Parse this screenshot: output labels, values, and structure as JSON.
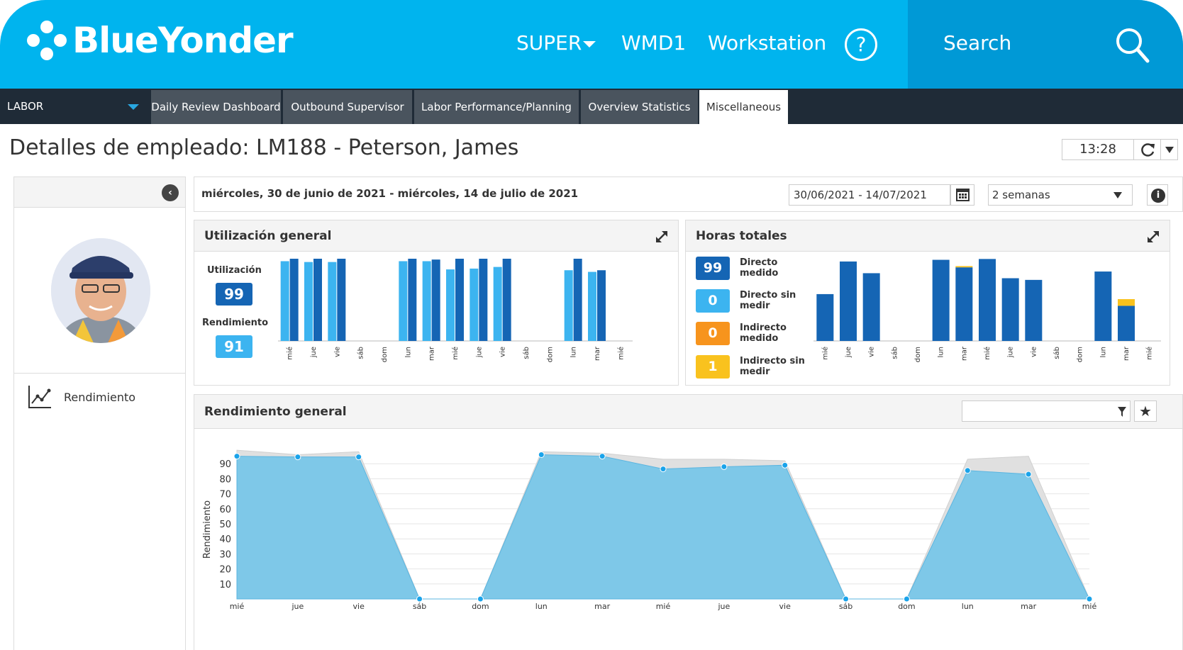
{
  "brand": {
    "name": "BlueYonder",
    "primary_color": "#00b4ee"
  },
  "topnav": {
    "user_menu": "SUPER",
    "warehouse": "WMD1",
    "workstation": "Workstation",
    "help": "?",
    "search_label": "Search"
  },
  "tabbar": {
    "module": "LABOR",
    "tabs": [
      {
        "label": "Daily Review Dashboard",
        "active": false
      },
      {
        "label": "Outbound Supervisor",
        "active": false
      },
      {
        "label": "Labor Performance/Planning",
        "active": false
      },
      {
        "label": "Overview Statistics",
        "active": false
      },
      {
        "label": "Miscellaneous",
        "active": true
      }
    ]
  },
  "page": {
    "title": "Detalles de empleado: LM188 - Peterson, James",
    "clock": "13:28"
  },
  "left_panel": {
    "link_label": "Rendimiento"
  },
  "datebar": {
    "range_text": "miércoles, 30 de junio de 2021 - miércoles, 14 de julio de 2021",
    "date_input": "30/06/2021 - 14/07/2021",
    "period": "2 semanas"
  },
  "utilization_panel": {
    "title": "Utilización general",
    "utilization_label": "Utilización",
    "utilization_value": "99",
    "performance_label": "Rendimiento",
    "performance_value": "91"
  },
  "hours_panel": {
    "title": "Horas totales",
    "legend": [
      {
        "value": "99",
        "label": "Directo medido",
        "color": "#1565b4"
      },
      {
        "value": "0",
        "label": "Directo sin medir",
        "color": "#3cb4f0"
      },
      {
        "value": "0",
        "label": "Indirecto medido",
        "color": "#f7941d"
      },
      {
        "value": "1",
        "label": "Indirecto sin medir",
        "color": "#f9c21e"
      }
    ]
  },
  "performance_panel": {
    "title": "Rendimiento general"
  },
  "chart_data": [
    {
      "type": "bar",
      "name": "utilization",
      "categories": [
        "mié",
        "jue",
        "vie",
        "sáb",
        "dom",
        "lun",
        "mar",
        "mié",
        "jue",
        "vie",
        "sáb",
        "dom",
        "lun",
        "mar",
        "mié"
      ],
      "series": [
        {
          "color": "#3cb4f0",
          "values": [
            97,
            96,
            96,
            0,
            0,
            97,
            97,
            87,
            88,
            90,
            0,
            0,
            86,
            84,
            0
          ]
        },
        {
          "color": "#1565b4",
          "values": [
            100,
            100,
            100,
            0,
            0,
            100,
            99,
            100,
            100,
            100,
            0,
            0,
            100,
            86,
            0
          ]
        }
      ],
      "ylim": [
        0,
        100
      ]
    },
    {
      "type": "bar",
      "name": "hours",
      "stacked": true,
      "categories": [
        "mié",
        "jue",
        "vie",
        "sáb",
        "dom",
        "lun",
        "mar",
        "mié",
        "jue",
        "vie",
        "sáb",
        "dom",
        "lun",
        "mar",
        "mié"
      ],
      "series": [
        {
          "color": "#1565b4",
          "values": [
            5.6,
            9.5,
            8.1,
            0,
            0,
            9.7,
            8.8,
            9.8,
            7.5,
            7.3,
            0,
            0,
            8.3,
            4.2,
            0
          ]
        },
        {
          "color": "#f9c21e",
          "values": [
            0,
            0,
            0,
            0,
            0,
            0,
            0.15,
            0,
            0,
            0,
            0,
            0,
            0,
            0.8,
            0
          ]
        }
      ],
      "ylim": [
        0,
        10
      ]
    },
    {
      "type": "area",
      "name": "performance",
      "ylabel": "Rendimiento",
      "yticks": [
        10,
        20,
        30,
        40,
        50,
        60,
        70,
        80,
        90
      ],
      "ylim": [
        0,
        100
      ],
      "categories": [
        "mié",
        "jue",
        "vie",
        "sáb",
        "dom",
        "lun",
        "mar",
        "mié",
        "jue",
        "vie",
        "sáb",
        "dom",
        "lun",
        "mar",
        "mié"
      ],
      "series": [
        {
          "color": "#e0e0e0",
          "values": [
            99,
            96,
            98,
            0,
            0,
            98,
            97,
            93,
            93,
            92,
            0,
            0,
            93,
            95,
            0
          ]
        },
        {
          "color": "#7ec8e8",
          "values": [
            95,
            94.5,
            94.5,
            0,
            0,
            96,
            95,
            86.5,
            88,
            89,
            0,
            0,
            85.5,
            83,
            0
          ]
        }
      ]
    }
  ]
}
